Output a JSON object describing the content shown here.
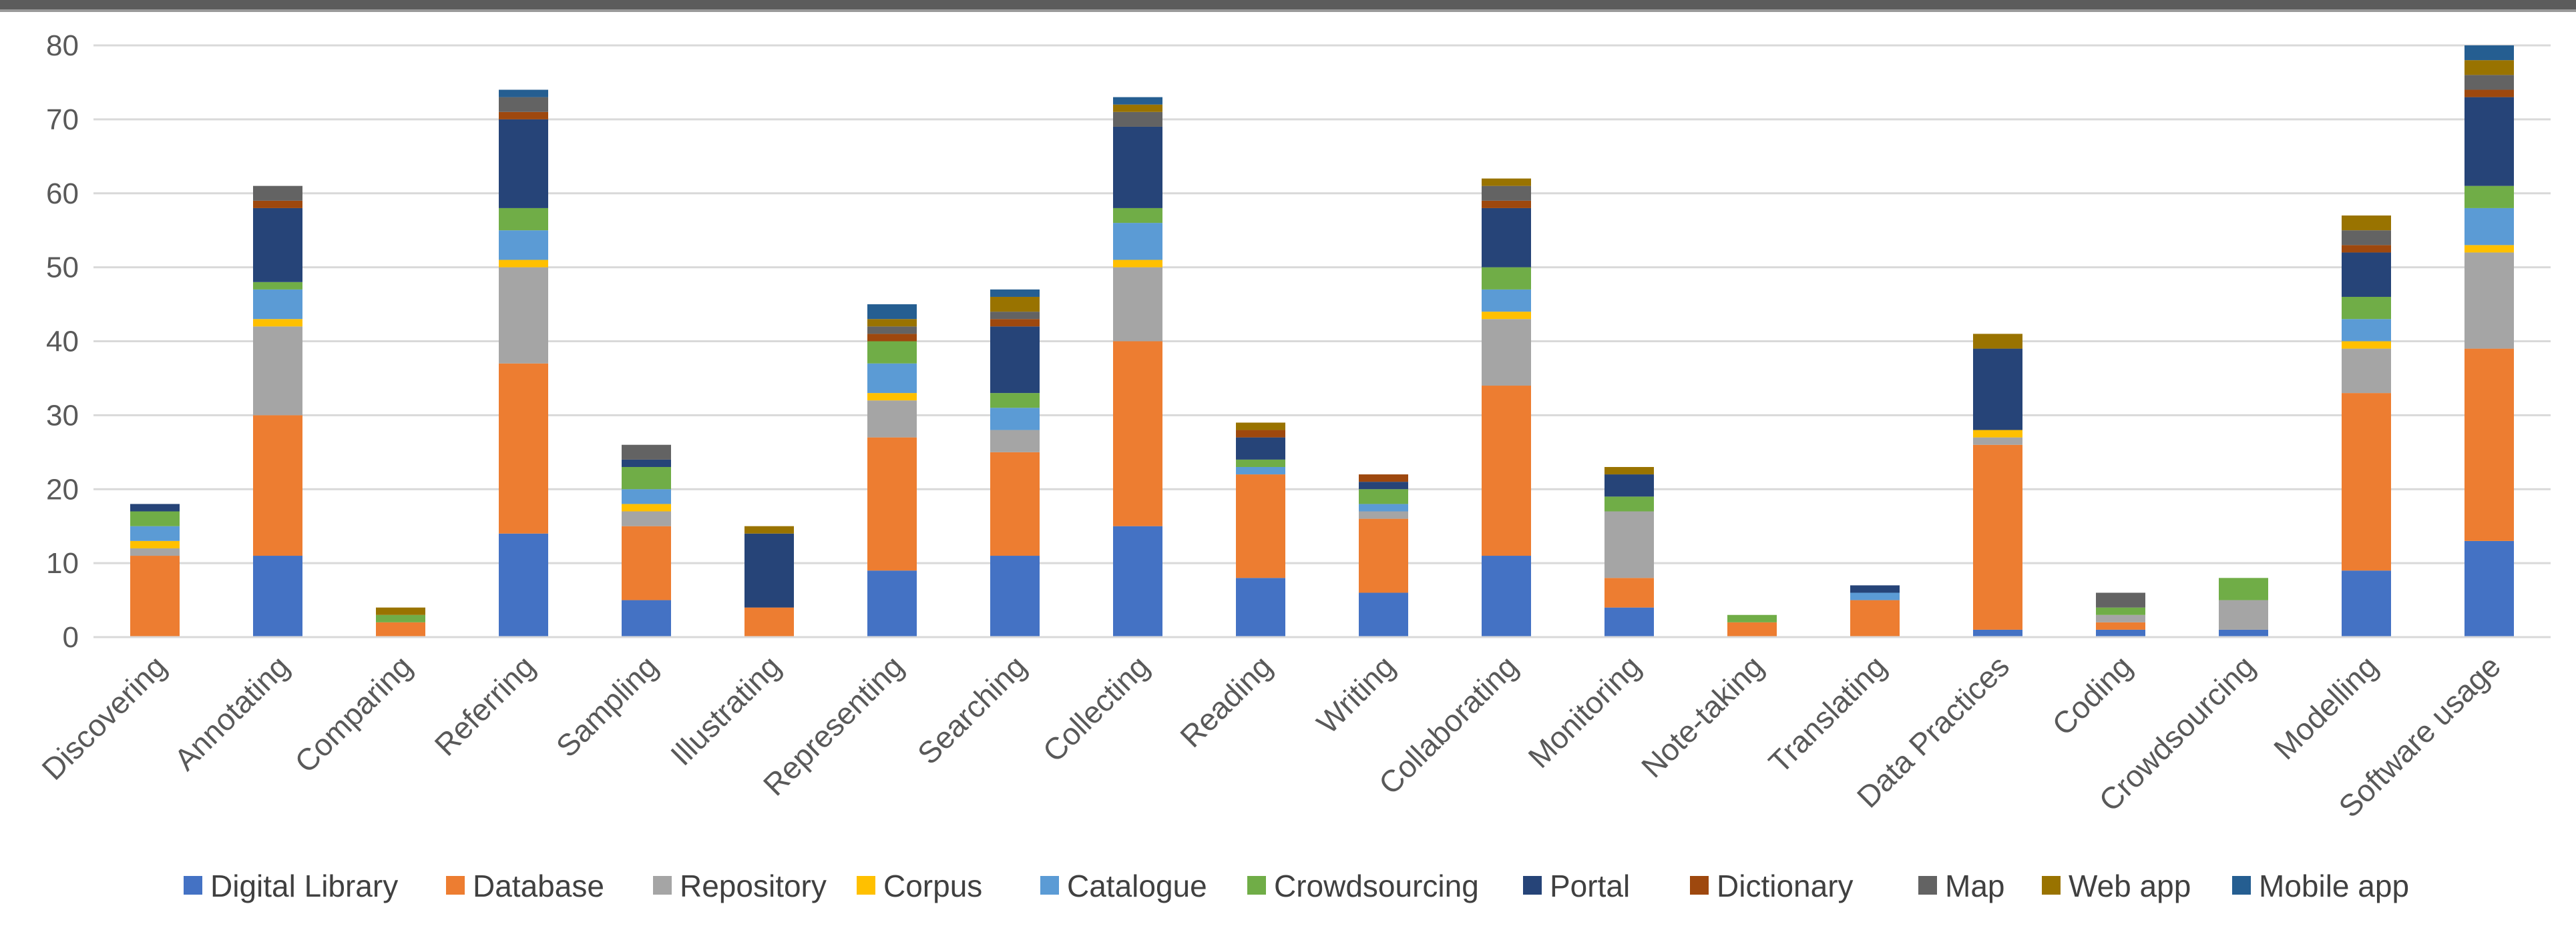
{
  "chart_data": {
    "type": "bar",
    "stacked": true,
    "title": "",
    "xlabel": "",
    "ylabel": "",
    "ylim": [
      0,
      80
    ],
    "yticks": [
      "0",
      "10",
      "20",
      "30",
      "40",
      "50",
      "60",
      "70",
      "80"
    ],
    "grid": true,
    "legend_position": "bottom",
    "categories": [
      "Discovering",
      "Annotating",
      "Comparing",
      "Referring",
      "Sampling",
      "Illustrating",
      "Representing",
      "Searching",
      "Collecting",
      "Reading",
      "Writing",
      "Collaborating",
      "Monitoring",
      "Note-taking",
      "Translating",
      "Data Practices",
      "Coding",
      "Crowdsourcing",
      "Modelling",
      "Software usage"
    ],
    "series": [
      {
        "name": "Digital Library",
        "color": "#4472c4",
        "values": [
          0,
          11,
          0,
          14,
          5,
          0,
          9,
          11,
          15,
          8,
          6,
          11,
          4,
          0,
          0,
          1,
          1,
          1,
          9,
          13
        ]
      },
      {
        "name": "Database",
        "color": "#ed7d31",
        "values": [
          11,
          19,
          2,
          23,
          10,
          4,
          18,
          14,
          25,
          14,
          10,
          23,
          4,
          2,
          5,
          25,
          1,
          0,
          24,
          26
        ]
      },
      {
        "name": "Repository",
        "color": "#a5a5a5",
        "values": [
          1,
          12,
          0,
          13,
          2,
          0,
          5,
          3,
          10,
          0,
          1,
          9,
          9,
          0,
          0,
          1,
          1,
          4,
          6,
          13
        ]
      },
      {
        "name": "Corpus",
        "color": "#ffc000",
        "values": [
          1,
          1,
          0,
          1,
          1,
          0,
          1,
          0,
          1,
          0,
          0,
          1,
          0,
          0,
          0,
          1,
          0,
          0,
          1,
          1
        ]
      },
      {
        "name": "Catalogue",
        "color": "#5b9bd5",
        "values": [
          2,
          4,
          0,
          4,
          2,
          0,
          4,
          3,
          5,
          1,
          1,
          3,
          0,
          0,
          1,
          0,
          0,
          0,
          3,
          5
        ]
      },
      {
        "name": "Crowdsourcing",
        "color": "#70ad47",
        "values": [
          2,
          1,
          1,
          3,
          3,
          0,
          3,
          2,
          2,
          1,
          2,
          3,
          2,
          1,
          0,
          0,
          1,
          3,
          3,
          3
        ]
      },
      {
        "name": "Portal",
        "color": "#264478",
        "values": [
          1,
          10,
          0,
          12,
          1,
          10,
          0,
          9,
          11,
          3,
          1,
          8,
          3,
          0,
          1,
          11,
          0,
          0,
          6,
          12
        ]
      },
      {
        "name": "Dictionary",
        "color": "#9e480e",
        "values": [
          0,
          1,
          0,
          1,
          0,
          0,
          1,
          1,
          0,
          1,
          1,
          1,
          0,
          0,
          0,
          0,
          0,
          0,
          1,
          1
        ]
      },
      {
        "name": "Map",
        "color": "#636363",
        "values": [
          0,
          2,
          0,
          2,
          2,
          0,
          1,
          1,
          2,
          0,
          0,
          2,
          0,
          0,
          0,
          0,
          2,
          0,
          2,
          2
        ]
      },
      {
        "name": "Web app",
        "color": "#997300",
        "values": [
          0,
          0,
          1,
          0,
          0,
          1,
          1,
          2,
          1,
          1,
          0,
          1,
          1,
          0,
          0,
          2,
          0,
          0,
          2,
          2
        ]
      },
      {
        "name": "Mobile app",
        "color": "#255e91",
        "values": [
          0,
          0,
          0,
          1,
          0,
          0,
          2,
          1,
          1,
          0,
          0,
          0,
          0,
          0,
          0,
          0,
          0,
          0,
          0,
          2
        ]
      }
    ]
  }
}
